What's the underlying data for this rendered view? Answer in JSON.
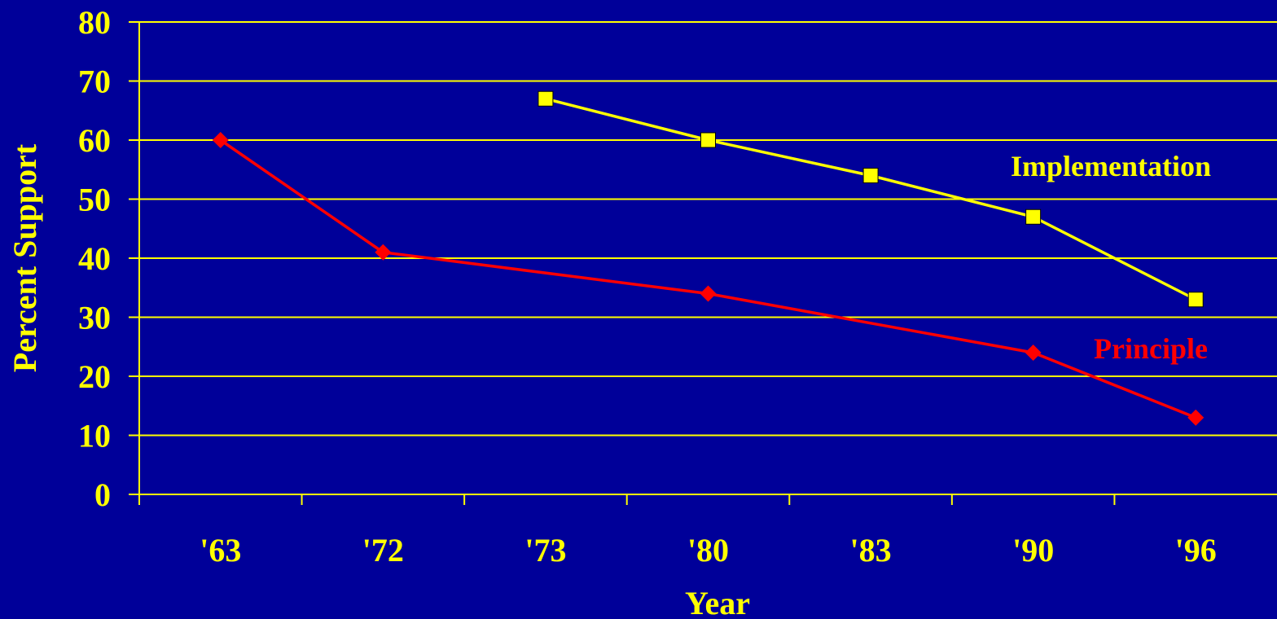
{
  "colors": {
    "background": "#000099",
    "axis": "#ffff00",
    "gridline": "#ffff00",
    "text": "#ffff00",
    "implementation": "#ffff00",
    "principle": "#ff0000"
  },
  "chart_data": {
    "type": "line",
    "categories": [
      "'63",
      "'72",
      "'73",
      "'80",
      "'83",
      "'90",
      "'96"
    ],
    "xlabel": "Year",
    "ylabel": "Percent Support",
    "ylim": [
      0,
      80
    ],
    "yticks": [
      0,
      10,
      20,
      30,
      40,
      50,
      60,
      70,
      80
    ],
    "grid": true,
    "series": [
      {
        "name": "Implementation",
        "marker": "square",
        "points": [
          {
            "x": "'73",
            "y": 67
          },
          {
            "x": "'80",
            "y": 60
          },
          {
            "x": "'83",
            "y": 54
          },
          {
            "x": "'90",
            "y": 47
          },
          {
            "x": "'96",
            "y": 33
          }
        ]
      },
      {
        "name": "Principle",
        "marker": "diamond",
        "points": [
          {
            "x": "'63",
            "y": 60
          },
          {
            "x": "'72",
            "y": 41
          },
          {
            "x": "'80",
            "y": 34
          },
          {
            "x": "'90",
            "y": 24
          },
          {
            "x": "'96",
            "y": 13
          }
        ]
      }
    ]
  }
}
